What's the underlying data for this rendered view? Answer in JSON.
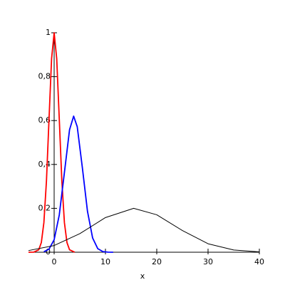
{
  "chart_data": {
    "type": "line",
    "x_label": "x",
    "xlim": [
      -5,
      40
    ],
    "ylim": [
      0,
      1
    ],
    "xticks": [
      0,
      10,
      20,
      30,
      40
    ],
    "yticks": [
      0,
      {
        "value": 0.2,
        "label": "0,2"
      },
      {
        "value": 0.4,
        "label": "0,4"
      },
      {
        "value": 0.6,
        "label": "0,6"
      },
      {
        "value": 0.8,
        "label": "0,8"
      },
      1
    ],
    "series": [
      {
        "color": "#ff0000",
        "x": [
          -5,
          -4,
          -3,
          -2.5,
          -2,
          -1.5,
          -1,
          -0.5,
          0,
          0.5,
          1,
          1.5,
          2,
          2.5,
          3,
          4
        ],
        "values": [
          0,
          0.0003,
          0.0111,
          0.0439,
          0.1353,
          0.3247,
          0.6065,
          0.8825,
          1,
          0.8825,
          0.6065,
          0.3247,
          0.1353,
          0.0439,
          0.0111,
          0.0003
        ]
      },
      {
        "color": "#0000ff",
        "x": [
          -2,
          -1,
          0,
          1,
          2,
          3,
          3.8,
          4.5,
          5.5,
          6.5,
          7.5,
          8.5,
          9.5,
          10.5,
          11.5
        ],
        "values": [
          0.0024,
          0.0139,
          0.0572,
          0.17,
          0.363,
          0.558,
          0.62,
          0.572,
          0.385,
          0.186,
          0.0648,
          0.0162,
          0.0029,
          0.0004,
          0
        ]
      },
      {
        "color": "#000000",
        "x": [
          -5,
          0,
          5,
          10,
          15.5,
          20,
          25,
          30,
          35,
          40
        ],
        "values": [
          0.0075,
          0.0306,
          0.0845,
          0.158,
          0.2,
          0.1707,
          0.0988,
          0.0387,
          0.0103,
          0.0018
        ]
      }
    ]
  }
}
